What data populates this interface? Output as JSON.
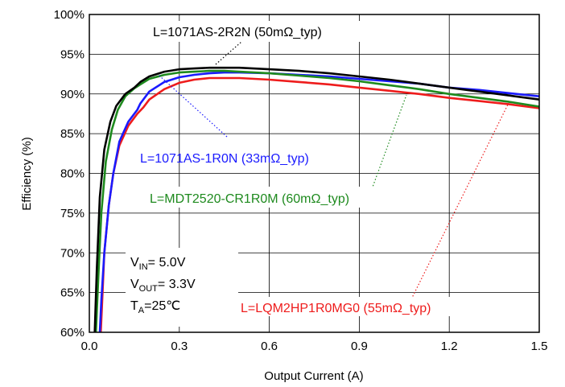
{
  "chart_data": {
    "type": "line",
    "title": "",
    "xlabel": "Output Current (A)",
    "ylabel": "Efficiency (%)",
    "xlim": [
      0,
      1.5
    ],
    "ylim": [
      60,
      100
    ],
    "xticks": [
      "0.0",
      "0.3",
      "0.6",
      "0.9",
      "1.2",
      "1.5"
    ],
    "yticks": [
      "60%",
      "65%",
      "70%",
      "75%",
      "80%",
      "85%",
      "90%",
      "95%",
      "100%"
    ],
    "grid": true,
    "conditions": [
      {
        "main": "V",
        "sub": "IN",
        "rest": "= 5.0V"
      },
      {
        "main": "V",
        "sub": "OUT",
        "rest": "= 3.3V"
      },
      {
        "main": "T",
        "sub": "A",
        "rest": "=25℃"
      }
    ],
    "series": [
      {
        "name": "L=1071AS-2R2N (50mΩ_typ)",
        "color": "#000000",
        "x": [
          0.018,
          0.025,
          0.035,
          0.05,
          0.07,
          0.09,
          0.12,
          0.15,
          0.17,
          0.2,
          0.25,
          0.3,
          0.35,
          0.4,
          0.45,
          0.5,
          0.6,
          0.7,
          0.8,
          0.9,
          1.0,
          1.1,
          1.2,
          1.3,
          1.4,
          1.5
        ],
        "y": [
          60,
          68,
          77,
          83,
          86.5,
          88.5,
          90,
          90.8,
          91.5,
          92.2,
          92.8,
          93.1,
          93.2,
          93.3,
          93.3,
          93.3,
          93.1,
          92.9,
          92.6,
          92.2,
          91.8,
          91.3,
          90.8,
          90.3,
          89.8,
          89.3
        ]
      },
      {
        "name": "L=1071AS-1R0N (33mΩ_typ)",
        "color": "#1a1aff",
        "x": [
          0.035,
          0.04,
          0.05,
          0.065,
          0.08,
          0.1,
          0.13,
          0.16,
          0.17,
          0.2,
          0.25,
          0.3,
          0.35,
          0.4,
          0.45,
          0.5,
          0.6,
          0.7,
          0.8,
          0.9,
          1.0,
          1.1,
          1.2,
          1.3,
          1.4,
          1.5
        ],
        "y": [
          60,
          64,
          70,
          76,
          80,
          84,
          86.5,
          88,
          88.8,
          90.3,
          91.5,
          92.1,
          92.4,
          92.6,
          92.7,
          92.7,
          92.6,
          92.4,
          92.2,
          91.9,
          91.6,
          91.3,
          90.8,
          90.5,
          90.1,
          89.7
        ]
      },
      {
        "name": "L=MDT2520-CR1R0M (60mΩ_typ)",
        "color": "#1e8a1e",
        "x": [
          0.022,
          0.03,
          0.04,
          0.055,
          0.075,
          0.095,
          0.12,
          0.15,
          0.17,
          0.2,
          0.25,
          0.3,
          0.35,
          0.4,
          0.45,
          0.5,
          0.6,
          0.7,
          0.8,
          0.9,
          1.0,
          1.1,
          1.2,
          1.3,
          1.4,
          1.5
        ],
        "y": [
          60,
          67,
          75,
          81.5,
          85.5,
          88,
          89.7,
          90.7,
          91.2,
          91.9,
          92.4,
          92.7,
          92.8,
          92.9,
          92.9,
          92.8,
          92.6,
          92.3,
          92.0,
          91.6,
          91.1,
          90.6,
          90.0,
          89.5,
          89.0,
          88.4
        ]
      },
      {
        "name": "L=LQM2HP1R0MG0 (55mΩ_typ)",
        "color": "#ee1c1c",
        "x": [
          0.038,
          0.043,
          0.05,
          0.065,
          0.08,
          0.1,
          0.13,
          0.16,
          0.18,
          0.2,
          0.25,
          0.3,
          0.35,
          0.4,
          0.45,
          0.5,
          0.6,
          0.7,
          0.8,
          0.9,
          1.0,
          1.1,
          1.2,
          1.3,
          1.4,
          1.5
        ],
        "y": [
          60,
          64,
          70,
          76,
          80,
          83.5,
          86,
          87.5,
          88.3,
          89.3,
          90.6,
          91.4,
          91.8,
          92.0,
          92.0,
          92.0,
          91.8,
          91.5,
          91.2,
          90.8,
          90.4,
          90.0,
          89.5,
          89.1,
          88.7,
          88.2
        ]
      }
    ]
  }
}
